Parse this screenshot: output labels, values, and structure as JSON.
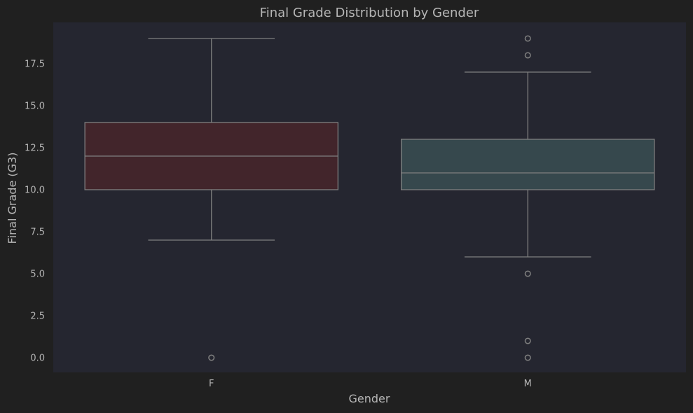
{
  "chart_data": {
    "type": "box",
    "title": "Final Grade Distribution by Gender",
    "xlabel": "Gender",
    "ylabel": "Final Grade (G3)",
    "categories": [
      "F",
      "M"
    ],
    "ylim": [
      -0.9,
      19.9
    ],
    "yticks": [
      0.0,
      2.5,
      5.0,
      7.5,
      10.0,
      12.5,
      15.0,
      17.5
    ],
    "ytick_labels": [
      "0.0",
      "2.5",
      "5.0",
      "7.5",
      "10.0",
      "12.5",
      "15.0",
      "17.5"
    ],
    "grid": false,
    "legend": "none",
    "boxes": [
      {
        "category": "F",
        "whisker_low": 7,
        "q1": 10,
        "median": 12,
        "q3": 14,
        "whisker_high": 19,
        "outliers": [
          0
        ],
        "color": "#42252b"
      },
      {
        "category": "M",
        "whisker_low": 6,
        "q1": 10,
        "median": 11,
        "q3": 13,
        "whisker_high": 17,
        "outliers": [
          18,
          19,
          5,
          1,
          0
        ],
        "color": "#36484d"
      }
    ]
  },
  "colors": {
    "figure_background": "#202020",
    "plot_background": "#252630",
    "line_color": "#7f7f7f",
    "text_color": "#b5b5b5"
  }
}
